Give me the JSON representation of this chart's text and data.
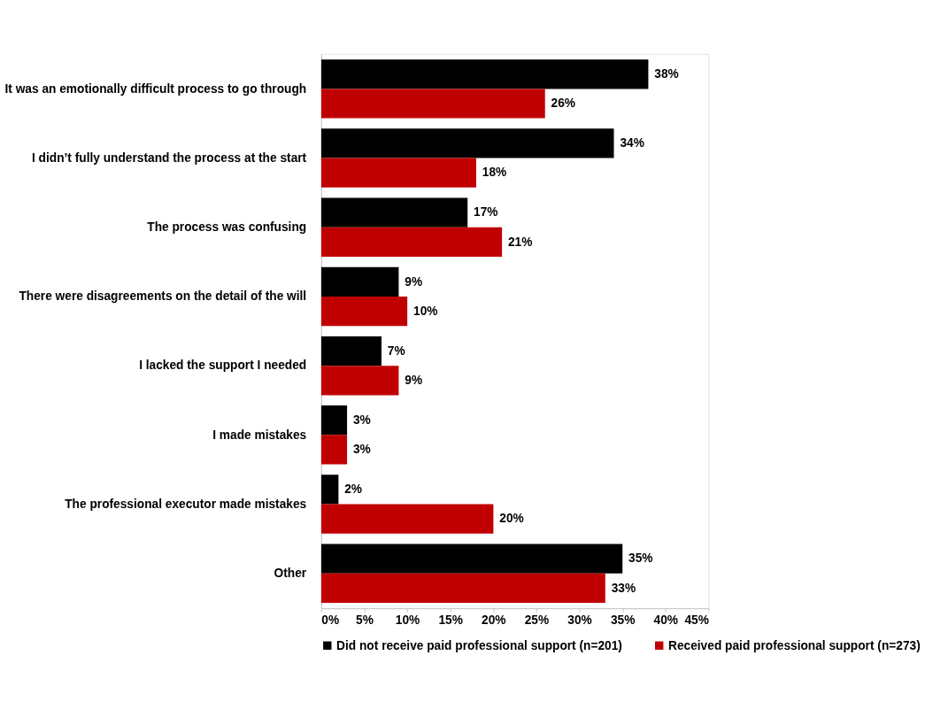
{
  "chart_data": {
    "type": "bar",
    "orientation": "horizontal",
    "categories": [
      "It was an emotionally difficult process to go through",
      "I didn’t fully understand the process at the start",
      "The process was confusing",
      "There were disagreements on the detail of the will",
      "I lacked the support I needed",
      "I made mistakes",
      "The professional executor made mistakes",
      "Other"
    ],
    "series": [
      {
        "name": "Did not receive paid professional support (n=201)",
        "color": "#000000",
        "values": [
          38,
          34,
          17,
          9,
          7,
          3,
          2,
          35
        ],
        "value_labels": [
          "38%",
          "34%",
          "17%",
          "9%",
          "7%",
          "3%",
          "2%",
          "35%"
        ]
      },
      {
        "name": "Received paid professional support (n=273)",
        "color": "#c00000",
        "values": [
          26,
          18,
          21,
          10,
          9,
          3,
          20,
          33
        ],
        "value_labels": [
          "26%",
          "18%",
          "21%",
          "10%",
          "9%",
          "3%",
          "20%",
          "33%"
        ]
      }
    ],
    "xlim": [
      0,
      45
    ],
    "xticks": [
      {
        "value": 0,
        "label": "0%"
      },
      {
        "value": 5,
        "label": "5%"
      },
      {
        "value": 10,
        "label": "10%"
      },
      {
        "value": 15,
        "label": "15%"
      },
      {
        "value": 20,
        "label": "20%"
      },
      {
        "value": 25,
        "label": "25%"
      },
      {
        "value": 30,
        "label": "30%"
      },
      {
        "value": 35,
        "label": "35%"
      },
      {
        "value": 40,
        "label": "40%"
      },
      {
        "value": 45,
        "label": "45%"
      }
    ],
    "legend": "bottom",
    "grid": false
  }
}
